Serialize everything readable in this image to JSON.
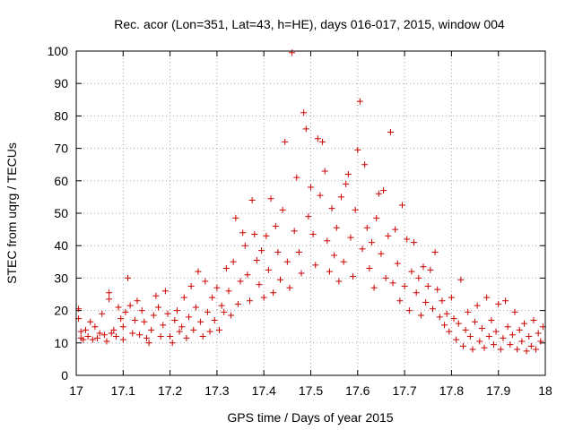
{
  "chart_data": {
    "type": "scatter",
    "title": "Rec. acor (Lon=351, Lat=43, h=HE), days 016-017, 2015, window 004",
    "xlabel": "GPS time / Days of year 2015",
    "ylabel": "STEC from uqrg / TECUs",
    "xlim": [
      17,
      18
    ],
    "ylim": [
      0,
      100
    ],
    "xticks": [
      "17",
      "17.1",
      "17.2",
      "17.3",
      "17.4",
      "17.5",
      "17.6",
      "17.7",
      "17.8",
      "17.9",
      "18"
    ],
    "yticks": [
      "0",
      "10",
      "20",
      "30",
      "40",
      "50",
      "60",
      "70",
      "80",
      "90",
      "100"
    ],
    "grid": true,
    "legend": "none",
    "marker": "+",
    "color": "#cc0000",
    "series": [
      {
        "points": [
          [
            17.005,
            20.5
          ],
          [
            17.005,
            17.5
          ],
          [
            17.01,
            13.5
          ],
          [
            17.01,
            11.5
          ],
          [
            17.015,
            11
          ],
          [
            17.02,
            14
          ],
          [
            17.025,
            12
          ],
          [
            17.03,
            16.5
          ],
          [
            17.035,
            11
          ],
          [
            17.04,
            15
          ],
          [
            17.045,
            11.5
          ],
          [
            17.05,
            13
          ],
          [
            17.055,
            19
          ],
          [
            17.06,
            12.5
          ],
          [
            17.065,
            10.5
          ],
          [
            17.07,
            25.5
          ],
          [
            17.07,
            23.5
          ],
          [
            17.075,
            13
          ],
          [
            17.08,
            14
          ],
          [
            17.085,
            12
          ],
          [
            17.09,
            21
          ],
          [
            17.095,
            17.5
          ],
          [
            17.1,
            15
          ],
          [
            17.1,
            11
          ],
          [
            17.105,
            19.5
          ],
          [
            17.11,
            30
          ],
          [
            17.115,
            21.5
          ],
          [
            17.12,
            13
          ],
          [
            17.125,
            17
          ],
          [
            17.13,
            23
          ],
          [
            17.135,
            12.5
          ],
          [
            17.14,
            20
          ],
          [
            17.145,
            16.5
          ],
          [
            17.15,
            11.5
          ],
          [
            17.155,
            10
          ],
          [
            17.16,
            14
          ],
          [
            17.165,
            18.5
          ],
          [
            17.17,
            24.5
          ],
          [
            17.175,
            21
          ],
          [
            17.18,
            12
          ],
          [
            17.185,
            15.5
          ],
          [
            17.19,
            26
          ],
          [
            17.195,
            19
          ],
          [
            17.2,
            12
          ],
          [
            17.205,
            10
          ],
          [
            17.21,
            17
          ],
          [
            17.215,
            20
          ],
          [
            17.22,
            13.5
          ],
          [
            17.225,
            15
          ],
          [
            17.23,
            24
          ],
          [
            17.235,
            11.5
          ],
          [
            17.24,
            18
          ],
          [
            17.245,
            27.5
          ],
          [
            17.25,
            14
          ],
          [
            17.255,
            21
          ],
          [
            17.26,
            32
          ],
          [
            17.265,
            16.5
          ],
          [
            17.27,
            12
          ],
          [
            17.275,
            29
          ],
          [
            17.28,
            19.5
          ],
          [
            17.285,
            13.5
          ],
          [
            17.29,
            24
          ],
          [
            17.295,
            17
          ],
          [
            17.3,
            27
          ],
          [
            17.305,
            14
          ],
          [
            17.31,
            21.5
          ],
          [
            17.315,
            19.5
          ],
          [
            17.32,
            33
          ],
          [
            17.325,
            26
          ],
          [
            17.33,
            18.5
          ],
          [
            17.335,
            35
          ],
          [
            17.34,
            48.5
          ],
          [
            17.345,
            22
          ],
          [
            17.35,
            29
          ],
          [
            17.355,
            44
          ],
          [
            17.36,
            40
          ],
          [
            17.365,
            31
          ],
          [
            17.37,
            23
          ],
          [
            17.375,
            54
          ],
          [
            17.38,
            43.5
          ],
          [
            17.385,
            35.5
          ],
          [
            17.39,
            28
          ],
          [
            17.395,
            38.5
          ],
          [
            17.4,
            24
          ],
          [
            17.405,
            43
          ],
          [
            17.41,
            32.5
          ],
          [
            17.415,
            54.5
          ],
          [
            17.42,
            25.5
          ],
          [
            17.425,
            46
          ],
          [
            17.43,
            38
          ],
          [
            17.435,
            29.5
          ],
          [
            17.44,
            51
          ],
          [
            17.445,
            72
          ],
          [
            17.45,
            35
          ],
          [
            17.455,
            27
          ],
          [
            17.46,
            99.5
          ],
          [
            17.465,
            44.5
          ],
          [
            17.47,
            61
          ],
          [
            17.475,
            38
          ],
          [
            17.48,
            31.5
          ],
          [
            17.485,
            81
          ],
          [
            17.49,
            76
          ],
          [
            17.495,
            49
          ],
          [
            17.5,
            58
          ],
          [
            17.505,
            43.5
          ],
          [
            17.51,
            34
          ],
          [
            17.515,
            73
          ],
          [
            17.52,
            55.5
          ],
          [
            17.525,
            72
          ],
          [
            17.53,
            63
          ],
          [
            17.535,
            41.5
          ],
          [
            17.54,
            32
          ],
          [
            17.545,
            51.5
          ],
          [
            17.55,
            37
          ],
          [
            17.555,
            45.5
          ],
          [
            17.56,
            29
          ],
          [
            17.565,
            55
          ],
          [
            17.57,
            35
          ],
          [
            17.575,
            59
          ],
          [
            17.58,
            62
          ],
          [
            17.585,
            42.5
          ],
          [
            17.59,
            30.5
          ],
          [
            17.595,
            51
          ],
          [
            17.6,
            69.5
          ],
          [
            17.605,
            84.5
          ],
          [
            17.61,
            39
          ],
          [
            17.615,
            65
          ],
          [
            17.62,
            45.5
          ],
          [
            17.625,
            33
          ],
          [
            17.63,
            41
          ],
          [
            17.635,
            27
          ],
          [
            17.64,
            48.5
          ],
          [
            17.645,
            56
          ],
          [
            17.65,
            37.5
          ],
          [
            17.655,
            57
          ],
          [
            17.66,
            30
          ],
          [
            17.665,
            43
          ],
          [
            17.67,
            75
          ],
          [
            17.675,
            28.5
          ],
          [
            17.68,
            45
          ],
          [
            17.685,
            34.5
          ],
          [
            17.69,
            23
          ],
          [
            17.695,
            52.5
          ],
          [
            17.7,
            27.5
          ],
          [
            17.705,
            42
          ],
          [
            17.71,
            20
          ],
          [
            17.715,
            32
          ],
          [
            17.72,
            41
          ],
          [
            17.725,
            25.5
          ],
          [
            17.73,
            30
          ],
          [
            17.735,
            18.5
          ],
          [
            17.74,
            33.5
          ],
          [
            17.745,
            22.5
          ],
          [
            17.75,
            27.5
          ],
          [
            17.755,
            32.5
          ],
          [
            17.76,
            20.5
          ],
          [
            17.765,
            38
          ],
          [
            17.77,
            26.5
          ],
          [
            17.775,
            18
          ],
          [
            17.78,
            23
          ],
          [
            17.785,
            15.5
          ],
          [
            17.79,
            19
          ],
          [
            17.795,
            13.5
          ],
          [
            17.8,
            24
          ],
          [
            17.805,
            17.5
          ],
          [
            17.81,
            11
          ],
          [
            17.815,
            16
          ],
          [
            17.82,
            29.5
          ],
          [
            17.825,
            9
          ],
          [
            17.83,
            14
          ],
          [
            17.835,
            19.5
          ],
          [
            17.84,
            12
          ],
          [
            17.845,
            8
          ],
          [
            17.85,
            16.5
          ],
          [
            17.855,
            21.5
          ],
          [
            17.86,
            10.5
          ],
          [
            17.865,
            14.5
          ],
          [
            17.87,
            8.5
          ],
          [
            17.875,
            24
          ],
          [
            17.88,
            12
          ],
          [
            17.885,
            17
          ],
          [
            17.89,
            9.5
          ],
          [
            17.895,
            13.5
          ],
          [
            17.9,
            22
          ],
          [
            17.905,
            8
          ],
          [
            17.91,
            11.5
          ],
          [
            17.915,
            23
          ],
          [
            17.92,
            15
          ],
          [
            17.925,
            9.5
          ],
          [
            17.93,
            12.5
          ],
          [
            17.935,
            19.5
          ],
          [
            17.94,
            8
          ],
          [
            17.945,
            14
          ],
          [
            17.95,
            10.5
          ],
          [
            17.955,
            16
          ],
          [
            17.96,
            7.5
          ],
          [
            17.965,
            12
          ],
          [
            17.97,
            9
          ],
          [
            17.975,
            17
          ],
          [
            17.98,
            8
          ],
          [
            17.985,
            13
          ],
          [
            17.99,
            10.5
          ],
          [
            17.995,
            15
          ]
        ]
      }
    ]
  }
}
